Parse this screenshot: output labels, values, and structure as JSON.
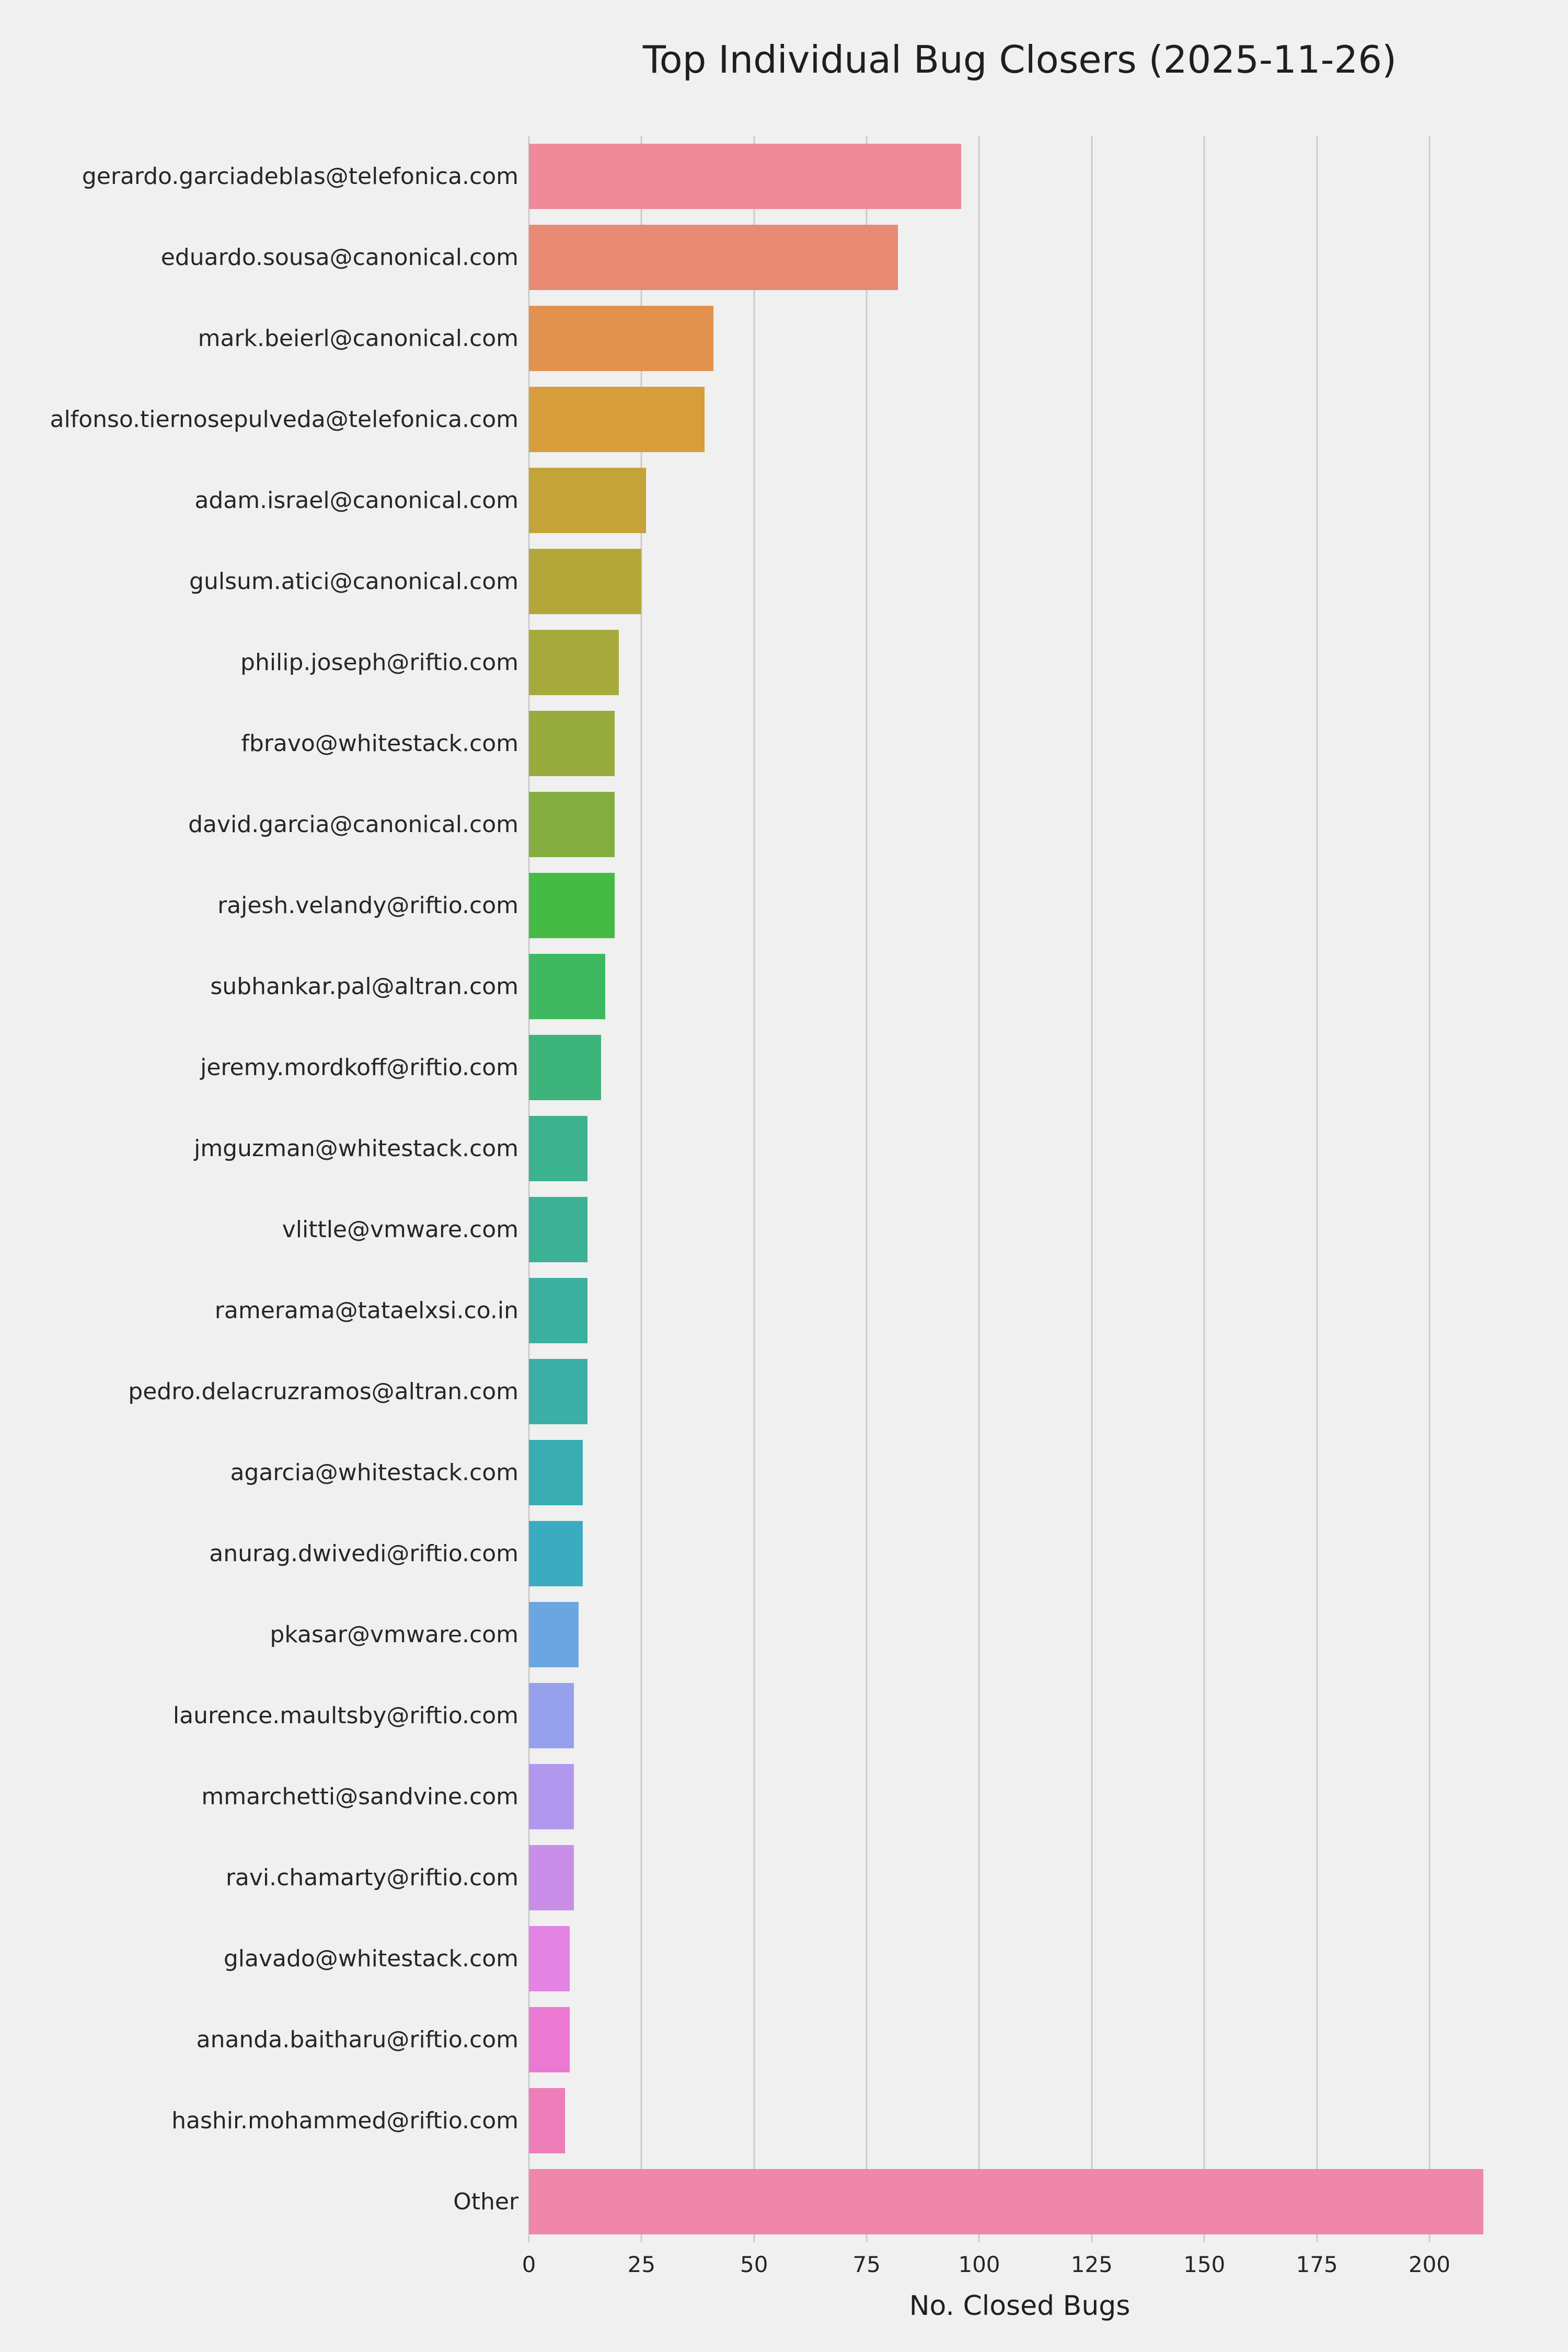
{
  "chart_data": {
    "type": "bar",
    "orientation": "horizontal",
    "title": "Top Individual Bug Closers (2025-11-26)",
    "xlabel": "No. Closed Bugs",
    "ylabel": "",
    "xlim": [
      0,
      218
    ],
    "xticks": [
      0,
      25,
      50,
      75,
      100,
      125,
      150,
      175,
      200
    ],
    "grid": "vertical",
    "legend": "none",
    "background_color": "#f0f0f0",
    "gridline_color": "#cbcbcb",
    "categories": [
      "gerardo.garciadeblas@telefonica.com",
      "eduardo.sousa@canonical.com",
      "mark.beierl@canonical.com",
      "alfonso.tiernosepulveda@telefonica.com",
      "adam.israel@canonical.com",
      "gulsum.atici@canonical.com",
      "philip.joseph@riftio.com",
      "fbravo@whitestack.com",
      "david.garcia@canonical.com",
      "rajesh.velandy@riftio.com",
      "subhankar.pal@altran.com",
      "jeremy.mordkoff@riftio.com",
      "jmguzman@whitestack.com",
      "vlittle@vmware.com",
      "ramerama@tataelxsi.co.in",
      "pedro.delacruzramos@altran.com",
      "agarcia@whitestack.com",
      "anurag.dwivedi@riftio.com",
      "pkasar@vmware.com",
      "laurence.maultsby@riftio.com",
      "mmarchetti@sandvine.com",
      "ravi.chamarty@riftio.com",
      "glavado@whitestack.com",
      "ananda.baitharu@riftio.com",
      "hashir.mohammed@riftio.com",
      "Other"
    ],
    "values": [
      96,
      82,
      41,
      39,
      26,
      25,
      20,
      19,
      19,
      19,
      17,
      16,
      13,
      13,
      13,
      13,
      12,
      12,
      11,
      10,
      10,
      10,
      9,
      9,
      8,
      212
    ],
    "bar_colors": [
      "#ef8a9b",
      "#e88a74",
      "#e2924e",
      "#d79d3a",
      "#c4a338",
      "#b4a73a",
      "#a6aa3c",
      "#97ab3f",
      "#85ae41",
      "#44bb44",
      "#3fb961",
      "#3eb47d",
      "#3db28e",
      "#3cb196",
      "#3bb09e",
      "#3aaea7",
      "#39adb1",
      "#3babc2",
      "#6ba5e2",
      "#97a0ec",
      "#b297ee",
      "#c98fe8",
      "#e383e3",
      "#eb79d1",
      "#ed7eb9",
      "#ee87aa"
    ]
  }
}
